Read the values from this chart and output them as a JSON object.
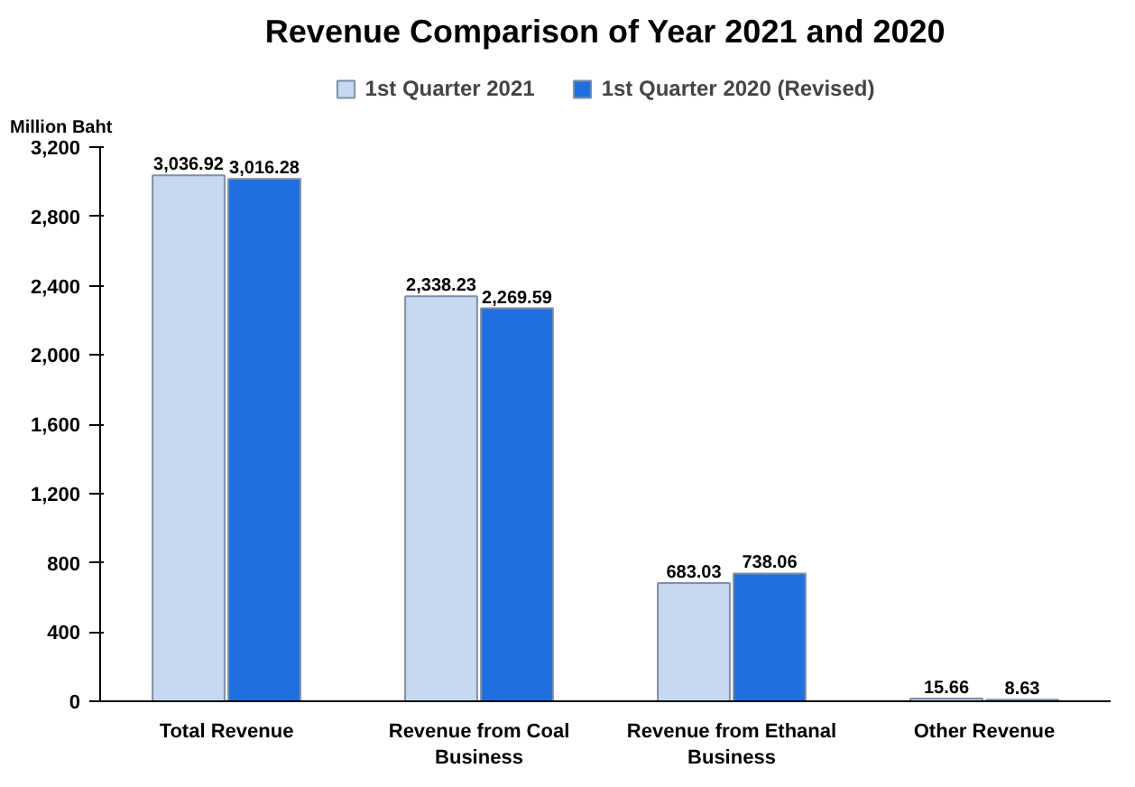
{
  "chart_data": {
    "type": "bar",
    "title": "Revenue Comparison of Year 2021 and 2020",
    "ylabel": "Million Baht",
    "categories": [
      "Total Revenue",
      "Revenue from Coal Business",
      "Revenue from Ethanal Business",
      "Other Revenue"
    ],
    "series": [
      {
        "name": "1st Quarter 2021",
        "color": "#c6d9f1",
        "values": [
          3036.92,
          2338.23,
          683.03,
          15.66
        ],
        "value_labels": [
          "3,036.92",
          "2,338.23",
          "683.03",
          "15.66"
        ]
      },
      {
        "name": "1st Quarter 2020 (Revised)",
        "color": "#1f6fe0",
        "values": [
          3016.28,
          2269.59,
          738.06,
          8.63
        ],
        "value_labels": [
          "3,016.28",
          "2,269.59",
          "738.06",
          "8.63"
        ]
      }
    ],
    "ylim": [
      0,
      3200
    ],
    "yticks": [
      0,
      400,
      800,
      {
        "value": 1200,
        "label": "1,200"
      },
      {
        "value": 1600,
        "label": "1,600"
      },
      {
        "value": 2000,
        "label": "2,000"
      },
      {
        "value": 2400,
        "label": "2,400"
      },
      {
        "value": 2800,
        "label": "2,800"
      },
      {
        "value": 3200,
        "label": "3,200"
      }
    ],
    "legend": "top",
    "grid": false
  }
}
